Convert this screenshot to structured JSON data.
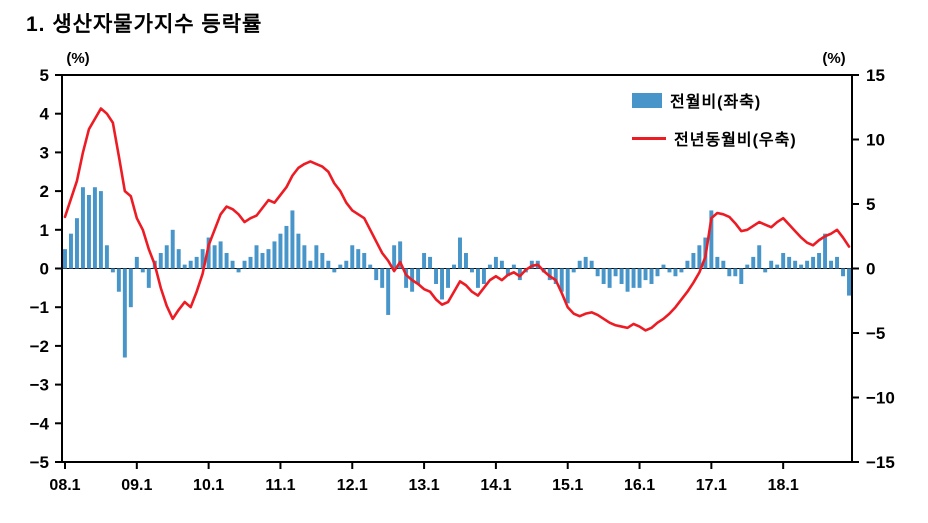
{
  "title": "1. 생산자물가지수 등락률",
  "legend": {
    "bar": "전월비(좌축)",
    "line": "전년동월비(우축)"
  },
  "colors": {
    "bar": "#4795C9",
    "line": "#ED1C24",
    "axis": "#000000",
    "background": "#FFFFFF"
  },
  "chart_data": {
    "type": "bar",
    "subtype": "bar+line dual axis",
    "title": "1. 생산자물가지수 등락률",
    "frequency": "monthly",
    "x_start": "08.1",
    "x_end": "18.12",
    "x_tick_labels": [
      "08.1",
      "09.1",
      "10.1",
      "11.1",
      "12.1",
      "13.1",
      "14.1",
      "15.1",
      "16.1",
      "17.1",
      "18.1"
    ],
    "left_axis": {
      "min": -5,
      "max": 5,
      "ticks": [
        5,
        4,
        3,
        2,
        1,
        0,
        -1,
        -2,
        -3,
        -4,
        -5
      ],
      "unit": "(%)"
    },
    "right_axis": {
      "min": -15,
      "max": 15,
      "ticks": [
        15,
        10,
        5,
        0,
        -5,
        -10,
        -15
      ],
      "unit": "(%)"
    },
    "grid": false,
    "legend_position": "top-right inside",
    "series": [
      {
        "name": "전월비(좌축)",
        "type": "bar",
        "axis": "left",
        "values": [
          0.5,
          0.9,
          1.3,
          2.1,
          1.9,
          2.1,
          2.0,
          0.6,
          -0.1,
          -0.6,
          -2.3,
          -1.0,
          0.3,
          -0.1,
          -0.5,
          0.2,
          0.4,
          0.6,
          1.0,
          0.5,
          0.1,
          0.2,
          0.3,
          0.5,
          0.8,
          0.6,
          0.7,
          0.4,
          0.2,
          -0.1,
          0.2,
          0.3,
          0.6,
          0.4,
          0.5,
          0.7,
          0.9,
          1.1,
          1.5,
          0.9,
          0.6,
          0.2,
          0.6,
          0.4,
          0.2,
          -0.1,
          0.1,
          0.2,
          0.6,
          0.5,
          0.4,
          0.1,
          -0.3,
          -0.5,
          -1.2,
          0.6,
          0.7,
          -0.5,
          -0.6,
          -0.4,
          0.4,
          0.3,
          -0.4,
          -0.8,
          -0.5,
          0.1,
          0.8,
          0.4,
          -0.1,
          -0.5,
          -0.4,
          0.1,
          0.3,
          0.2,
          -0.2,
          0.1,
          -0.3,
          -0.1,
          0.2,
          0.2,
          -0.1,
          -0.3,
          -0.4,
          -0.6,
          -0.9,
          -0.1,
          0.2,
          0.3,
          0.2,
          -0.2,
          -0.4,
          -0.5,
          -0.2,
          -0.4,
          -0.6,
          -0.5,
          -0.5,
          -0.3,
          -0.4,
          -0.2,
          0.1,
          -0.1,
          -0.2,
          -0.1,
          0.2,
          0.4,
          0.6,
          0.8,
          1.5,
          0.3,
          0.2,
          -0.2,
          -0.2,
          -0.4,
          0.1,
          0.3,
          0.6,
          -0.1,
          0.2,
          0.1,
          0.4,
          0.3,
          0.2,
          0.1,
          0.2,
          0.3,
          0.4,
          0.9,
          0.2,
          0.3,
          -0.2,
          -0.7
        ]
      },
      {
        "name": "전년동월비(우축)",
        "type": "line",
        "axis": "right",
        "values": [
          4.0,
          5.4,
          6.8,
          9.0,
          10.8,
          11.6,
          12.4,
          12.0,
          11.3,
          8.7,
          6.0,
          5.6,
          3.9,
          3.0,
          1.5,
          0.3,
          -1.5,
          -2.9,
          -3.9,
          -3.2,
          -2.6,
          -3.0,
          -1.8,
          -0.4,
          1.8,
          3.0,
          4.2,
          4.8,
          4.6,
          4.2,
          3.6,
          3.9,
          4.1,
          4.7,
          5.3,
          5.1,
          5.7,
          6.3,
          7.2,
          7.8,
          8.1,
          8.3,
          8.1,
          7.9,
          7.5,
          6.6,
          6.0,
          5.1,
          4.5,
          4.2,
          3.9,
          3.0,
          2.1,
          1.2,
          0.6,
          -0.2,
          0.5,
          -0.5,
          -0.9,
          -1.2,
          -1.6,
          -1.8,
          -2.4,
          -2.8,
          -2.6,
          -1.8,
          -1.0,
          -1.3,
          -1.8,
          -2.1,
          -1.5,
          -0.9,
          -0.6,
          -0.9,
          -0.5,
          -0.3,
          -0.6,
          -0.1,
          0.2,
          0.3,
          -0.2,
          -0.6,
          -0.9,
          -1.9,
          -3.0,
          -3.5,
          -3.7,
          -3.5,
          -3.4,
          -3.6,
          -3.9,
          -4.2,
          -4.4,
          -4.5,
          -4.6,
          -4.3,
          -4.5,
          -4.8,
          -4.6,
          -4.2,
          -3.9,
          -3.5,
          -3.0,
          -2.4,
          -1.8,
          -1.1,
          -0.3,
          0.9,
          3.9,
          4.3,
          4.2,
          4.0,
          3.5,
          2.9,
          3.0,
          3.3,
          3.6,
          3.4,
          3.2,
          3.6,
          3.9,
          3.4,
          2.9,
          2.4,
          2.0,
          1.8,
          2.2,
          2.5,
          2.7,
          3.0,
          2.4,
          1.7
        ]
      }
    ]
  }
}
